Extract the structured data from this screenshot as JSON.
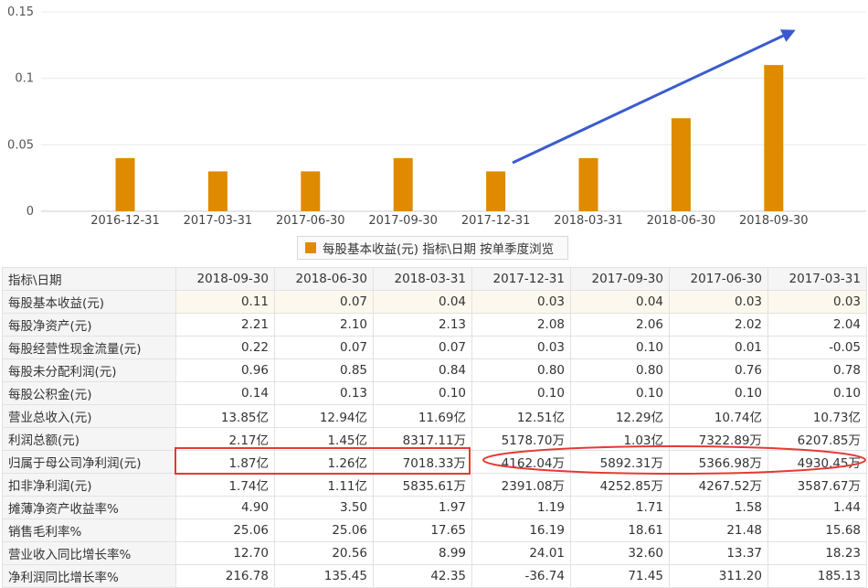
{
  "chart_data": {
    "type": "bar",
    "categories": [
      "2016-12-31",
      "2017-03-31",
      "2017-06-30",
      "2017-09-30",
      "2017-12-31",
      "2018-03-31",
      "2018-06-30",
      "2018-09-30"
    ],
    "series": [
      {
        "name": "每股基本收益(元) 指标\\日期 按单季度浏览",
        "values": [
          0.04,
          0.03,
          0.03,
          0.04,
          0.03,
          0.04,
          0.07,
          0.11
        ]
      }
    ],
    "ylim": [
      0,
      0.15
    ],
    "yticks": [
      "0",
      "0.05",
      "0.1",
      "0.15"
    ],
    "grid": true,
    "legend": "bottom-center",
    "colors": {
      "bar": "#e08a00",
      "arrow": "#3a5bd0",
      "highlight": "#e53935"
    }
  },
  "table": {
    "header_label": "指标\\日期",
    "columns": [
      "2018-09-30",
      "2018-06-30",
      "2018-03-31",
      "2017-12-31",
      "2017-09-30",
      "2017-06-30",
      "2017-03-31"
    ],
    "rows": [
      {
        "label": "每股基本收益(元)",
        "values": [
          "0.11",
          "0.07",
          "0.04",
          "0.03",
          "0.04",
          "0.03",
          "0.03"
        ]
      },
      {
        "label": "每股净资产(元)",
        "values": [
          "2.21",
          "2.10",
          "2.13",
          "2.08",
          "2.06",
          "2.02",
          "2.04"
        ]
      },
      {
        "label": "每股经营性现金流量(元)",
        "values": [
          "0.22",
          "0.07",
          "0.07",
          "0.03",
          "0.10",
          "0.01",
          "-0.05"
        ]
      },
      {
        "label": "每股未分配利润(元)",
        "values": [
          "0.96",
          "0.85",
          "0.84",
          "0.80",
          "0.80",
          "0.76",
          "0.78"
        ]
      },
      {
        "label": "每股公积金(元)",
        "values": [
          "0.14",
          "0.13",
          "0.10",
          "0.10",
          "0.10",
          "0.10",
          "0.10"
        ]
      },
      {
        "label": "营业总收入(元)",
        "values": [
          "13.85亿",
          "12.94亿",
          "11.69亿",
          "12.51亿",
          "12.29亿",
          "10.74亿",
          "10.73亿"
        ]
      },
      {
        "label": "利润总额(元)",
        "values": [
          "2.17亿",
          "1.45亿",
          "8317.11万",
          "5178.70万",
          "1.03亿",
          "7322.89万",
          "6207.85万"
        ]
      },
      {
        "label": "归属于母公司净利润(元)",
        "values": [
          "1.87亿",
          "1.26亿",
          "7018.33万",
          "4162.04万",
          "5892.31万",
          "5366.98万",
          "4930.45万"
        ]
      },
      {
        "label": "扣非净利润(元)",
        "values": [
          "1.74亿",
          "1.11亿",
          "5835.61万",
          "2391.08万",
          "4252.85万",
          "4267.52万",
          "3587.67万"
        ]
      },
      {
        "label": "摊薄净资产收益率%",
        "values": [
          "4.90",
          "3.50",
          "1.97",
          "1.19",
          "1.71",
          "1.58",
          "1.44"
        ]
      },
      {
        "label": "销售毛利率%",
        "values": [
          "25.06",
          "25.06",
          "17.65",
          "16.19",
          "18.61",
          "21.48",
          "15.68"
        ]
      },
      {
        "label": "营业收入同比增长率%",
        "values": [
          "12.70",
          "20.56",
          "8.99",
          "24.01",
          "32.60",
          "13.37",
          "18.23"
        ]
      },
      {
        "label": "净利润同比增长率%",
        "values": [
          "216.78",
          "135.45",
          "42.35",
          "-36.74",
          "71.45",
          "311.20",
          "185.13"
        ]
      }
    ]
  }
}
